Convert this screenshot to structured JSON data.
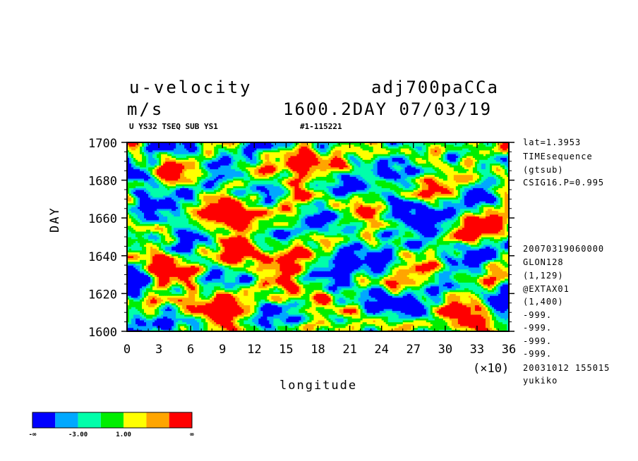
{
  "header": {
    "variable": "u-velocity",
    "units": "m/s",
    "experiment": "adj700paCCa",
    "time": "1600.2DAY 07/03/19",
    "subtitle_left": "U YS32 TSEQ SUB YS1",
    "subtitle_right": "#1-115221"
  },
  "side_info": {
    "top": [
      "lat=1.3953",
      "TIMEsequence",
      "(gtsub)",
      "CSIG16.P=0.995"
    ],
    "bottom": [
      "20070319060000",
      "GLON128",
      "(1,129)",
      "@EXTAX01",
      "(1,400)",
      "-999.",
      "-999.",
      "-999.",
      "-999.",
      "20031012 155015",
      "yukiko"
    ]
  },
  "chart_data": {
    "type": "heatmap",
    "xlabel": "longitude",
    "ylabel": "DAY",
    "xlim": [
      0,
      36
    ],
    "ylim": [
      1600,
      1700
    ],
    "x_ticks": [
      "0",
      "3",
      "6",
      "9",
      "12",
      "15",
      "18",
      "21",
      "24",
      "27",
      "30",
      "33",
      "36"
    ],
    "y_ticks": [
      "1600",
      "1620",
      "1640",
      "1660",
      "1680",
      "1700"
    ],
    "x_multiplier": "(×10)",
    "colorbar": {
      "colors": [
        "#0000ff",
        "#00a8ff",
        "#00ffaa",
        "#00ee00",
        "#ffff00",
        "#ffa500",
        "#ff0000"
      ],
      "labels": [
        "-∞",
        "-3.00",
        "1.00",
        "∞"
      ]
    }
  }
}
